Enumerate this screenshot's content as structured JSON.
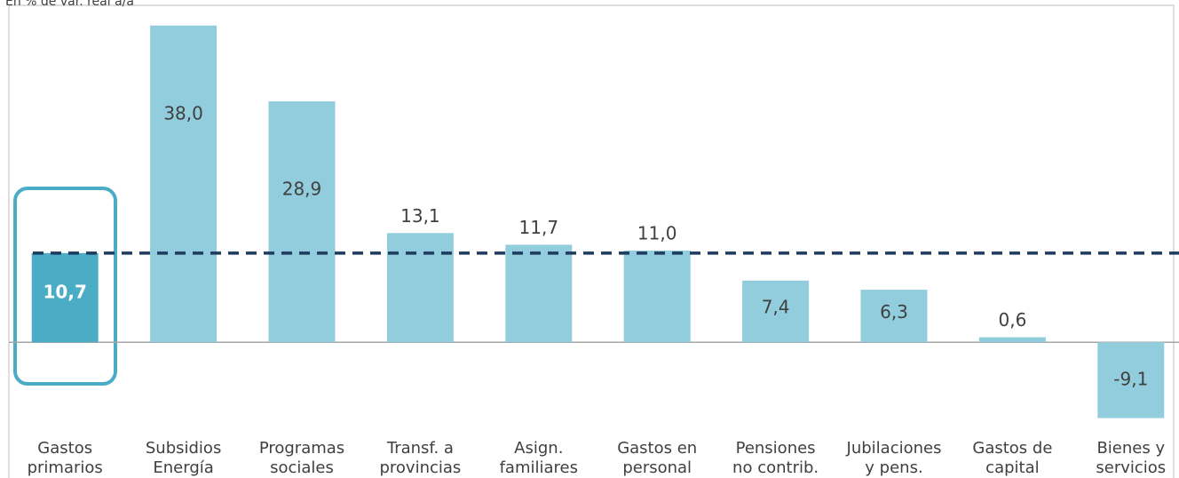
{
  "chart_data": {
    "type": "bar",
    "subtitle": "En % de var. real a/a",
    "categories": [
      [
        "Gastos",
        "primarios"
      ],
      [
        "Subsidios",
        "Energía"
      ],
      [
        "Programas",
        "sociales"
      ],
      [
        "Transf. a",
        "provincias"
      ],
      [
        "Asign.",
        "familiares"
      ],
      [
        "Gastos en",
        "personal"
      ],
      [
        "Pensiones",
        "no contrib."
      ],
      [
        "Jubilaciones",
        "y pens."
      ],
      [
        "Gastos de",
        "capital"
      ],
      [
        "Bienes y",
        "servicios"
      ]
    ],
    "values": [
      10.7,
      38.0,
      28.9,
      13.1,
      11.7,
      11.0,
      7.4,
      6.3,
      0.6,
      -9.1
    ],
    "value_labels": [
      "10,7",
      "38,0",
      "28,9",
      "13,1",
      "11,7",
      "11,0",
      "7,4",
      "6,3",
      "0,6",
      "-9,1"
    ],
    "label_positions": [
      "inside",
      "inside",
      "inside",
      "above",
      "above",
      "above",
      "inside",
      "inside",
      "above",
      "inside"
    ],
    "color": "#92cddd",
    "highlight": 0,
    "highlight_color": "#4bacc6",
    "ylim": [
      -10,
      40
    ]
  }
}
